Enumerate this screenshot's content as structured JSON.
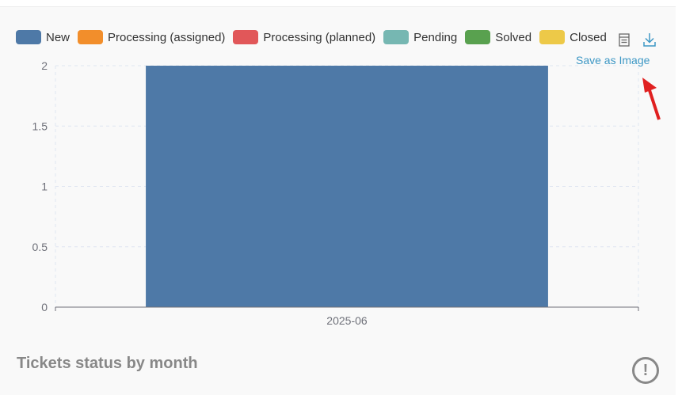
{
  "legend": [
    {
      "label": "New",
      "color": "#4e79a7"
    },
    {
      "label": "Processing (assigned)",
      "color": "#f28e2b"
    },
    {
      "label": "Processing (planned)",
      "color": "#e15759"
    },
    {
      "label": "Pending",
      "color": "#76b7b2"
    },
    {
      "label": "Solved",
      "color": "#59a14f"
    },
    {
      "label": "Closed",
      "color": "#edc948"
    }
  ],
  "toolbox": {
    "tooltip": "Save as Image",
    "icons": [
      "data-view-icon",
      "download-icon"
    ]
  },
  "footer": {
    "title": "Tickets status by month",
    "info_icon": "exclamation-circle-icon",
    "info_glyph": "!"
  },
  "chart_data": {
    "type": "bar",
    "stacked": true,
    "categories": [
      "2025-06"
    ],
    "series": [
      {
        "name": "New",
        "values": [
          2
        ],
        "color": "#4e79a7"
      },
      {
        "name": "Processing (assigned)",
        "values": [
          0
        ],
        "color": "#f28e2b"
      },
      {
        "name": "Processing (planned)",
        "values": [
          0
        ],
        "color": "#e15759"
      },
      {
        "name": "Pending",
        "values": [
          0
        ],
        "color": "#76b7b2"
      },
      {
        "name": "Solved",
        "values": [
          0
        ],
        "color": "#59a14f"
      },
      {
        "name": "Closed",
        "values": [
          0
        ],
        "color": "#edc948"
      }
    ],
    "ylim": [
      0,
      2
    ],
    "yticks": [
      "0",
      "0.5",
      "1",
      "1.5",
      "2"
    ],
    "grid": true,
    "legend_position": "top-left"
  }
}
